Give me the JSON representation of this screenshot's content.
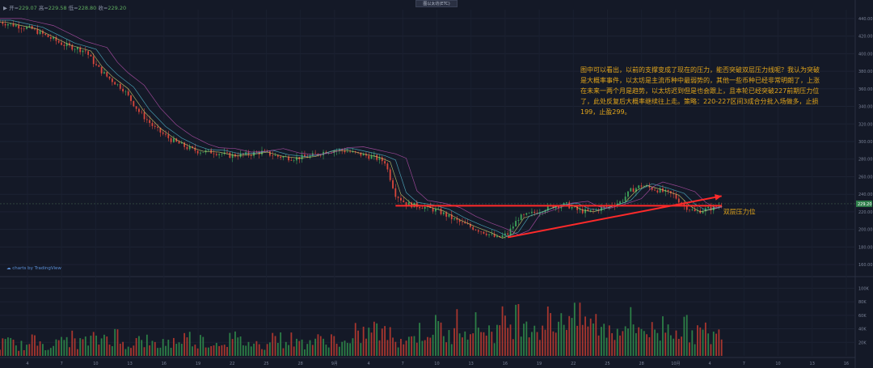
{
  "header": {
    "symbol_prefix": "▶ 开=",
    "open_value": "229.07",
    "high_label": "高=",
    "high_value": "229.58",
    "low_label": "低=",
    "low_value": "228.80",
    "close_label": "收=",
    "close_value": "229.20",
    "top_center_title": "图以太坊(ETC)"
  },
  "annotation": {
    "text": "图中可以看出，以前的支撑变成了现在的压力，能否突破双层压力线呢？我认为突破是大概率事件，以太坊是主流币种中最弱势的，其他一些币种已经非常明朗了，上涨在未来一两个月是趋势，以太坊迟到但是也会跟上，且本轮已经突破227前期压力位了，此处反复后大概率继续往上走。策略：220-227区间3成合分批入场做多，止损199，止盈299。"
  },
  "brand": "charts by TradingView",
  "chart_data": {
    "type": "candlestick",
    "price_axis_ticks": [
      "440.00",
      "420.00",
      "400.00",
      "380.00",
      "360.00",
      "340.00",
      "320.00",
      "300.00",
      "280.00",
      "260.00",
      "240.00",
      "220.00",
      "200.00",
      "180.00",
      "160.00"
    ],
    "current_price_label": "229.20",
    "volume_axis_ticks": [
      "100K",
      "80K",
      "60K",
      "40K",
      "20K"
    ],
    "x_ticks": [
      "4",
      "7",
      "10",
      "13",
      "16",
      "19",
      "22",
      "25",
      "28",
      "9月",
      "4",
      "7",
      "10",
      "13",
      "16",
      "19",
      "22",
      "25",
      "28",
      "10月",
      "4",
      "7",
      "10",
      "13",
      "16"
    ],
    "price_path": [
      [
        0,
        436
      ],
      [
        6,
        428
      ],
      [
        12,
        410
      ],
      [
        16,
        403
      ],
      [
        18,
        386
      ],
      [
        20,
        374
      ],
      [
        23,
        360
      ],
      [
        26,
        334
      ],
      [
        29,
        315
      ],
      [
        32,
        302
      ],
      [
        35,
        293
      ],
      [
        37,
        289
      ],
      [
        40,
        288
      ],
      [
        43,
        284
      ],
      [
        46,
        285
      ],
      [
        49,
        288
      ],
      [
        52,
        283
      ],
      [
        55,
        281
      ],
      [
        58,
        283
      ],
      [
        61,
        289
      ],
      [
        64,
        290
      ],
      [
        67,
        286
      ],
      [
        70,
        282
      ],
      [
        72,
        277
      ],
      [
        74,
        240
      ],
      [
        76,
        229
      ],
      [
        79,
        226
      ],
      [
        82,
        221
      ],
      [
        85,
        211
      ],
      [
        88,
        203
      ],
      [
        91,
        196
      ],
      [
        93,
        190
      ],
      [
        95,
        195
      ],
      [
        97,
        213
      ],
      [
        100,
        219
      ],
      [
        103,
        226
      ],
      [
        106,
        228
      ],
      [
        108,
        222
      ],
      [
        110,
        220
      ],
      [
        113,
        225
      ],
      [
        116,
        231
      ],
      [
        118,
        244
      ],
      [
        120,
        250
      ],
      [
        123,
        245
      ],
      [
        126,
        239
      ],
      [
        128,
        227
      ],
      [
        130,
        220
      ],
      [
        133,
        224
      ],
      [
        135,
        228
      ]
    ],
    "resistance_line": {
      "label": "双层压力位",
      "price": 227,
      "x_start": 74,
      "x_end": 135
    },
    "rising_trendline": {
      "start": [
        95,
        191
      ],
      "end": [
        135,
        238
      ]
    },
    "volume_values": [
      22,
      18,
      25,
      20,
      30,
      24,
      28,
      35,
      22,
      26,
      19,
      24,
      31,
      27,
      22,
      29,
      25,
      20,
      34,
      28,
      23,
      26,
      30,
      21,
      38,
      44,
      36,
      29,
      41,
      48,
      35,
      60,
      52,
      45,
      58,
      68,
      52,
      60,
      74,
      61,
      55,
      46,
      58,
      50,
      42,
      53,
      47,
      40,
      35,
      30
    ]
  }
}
